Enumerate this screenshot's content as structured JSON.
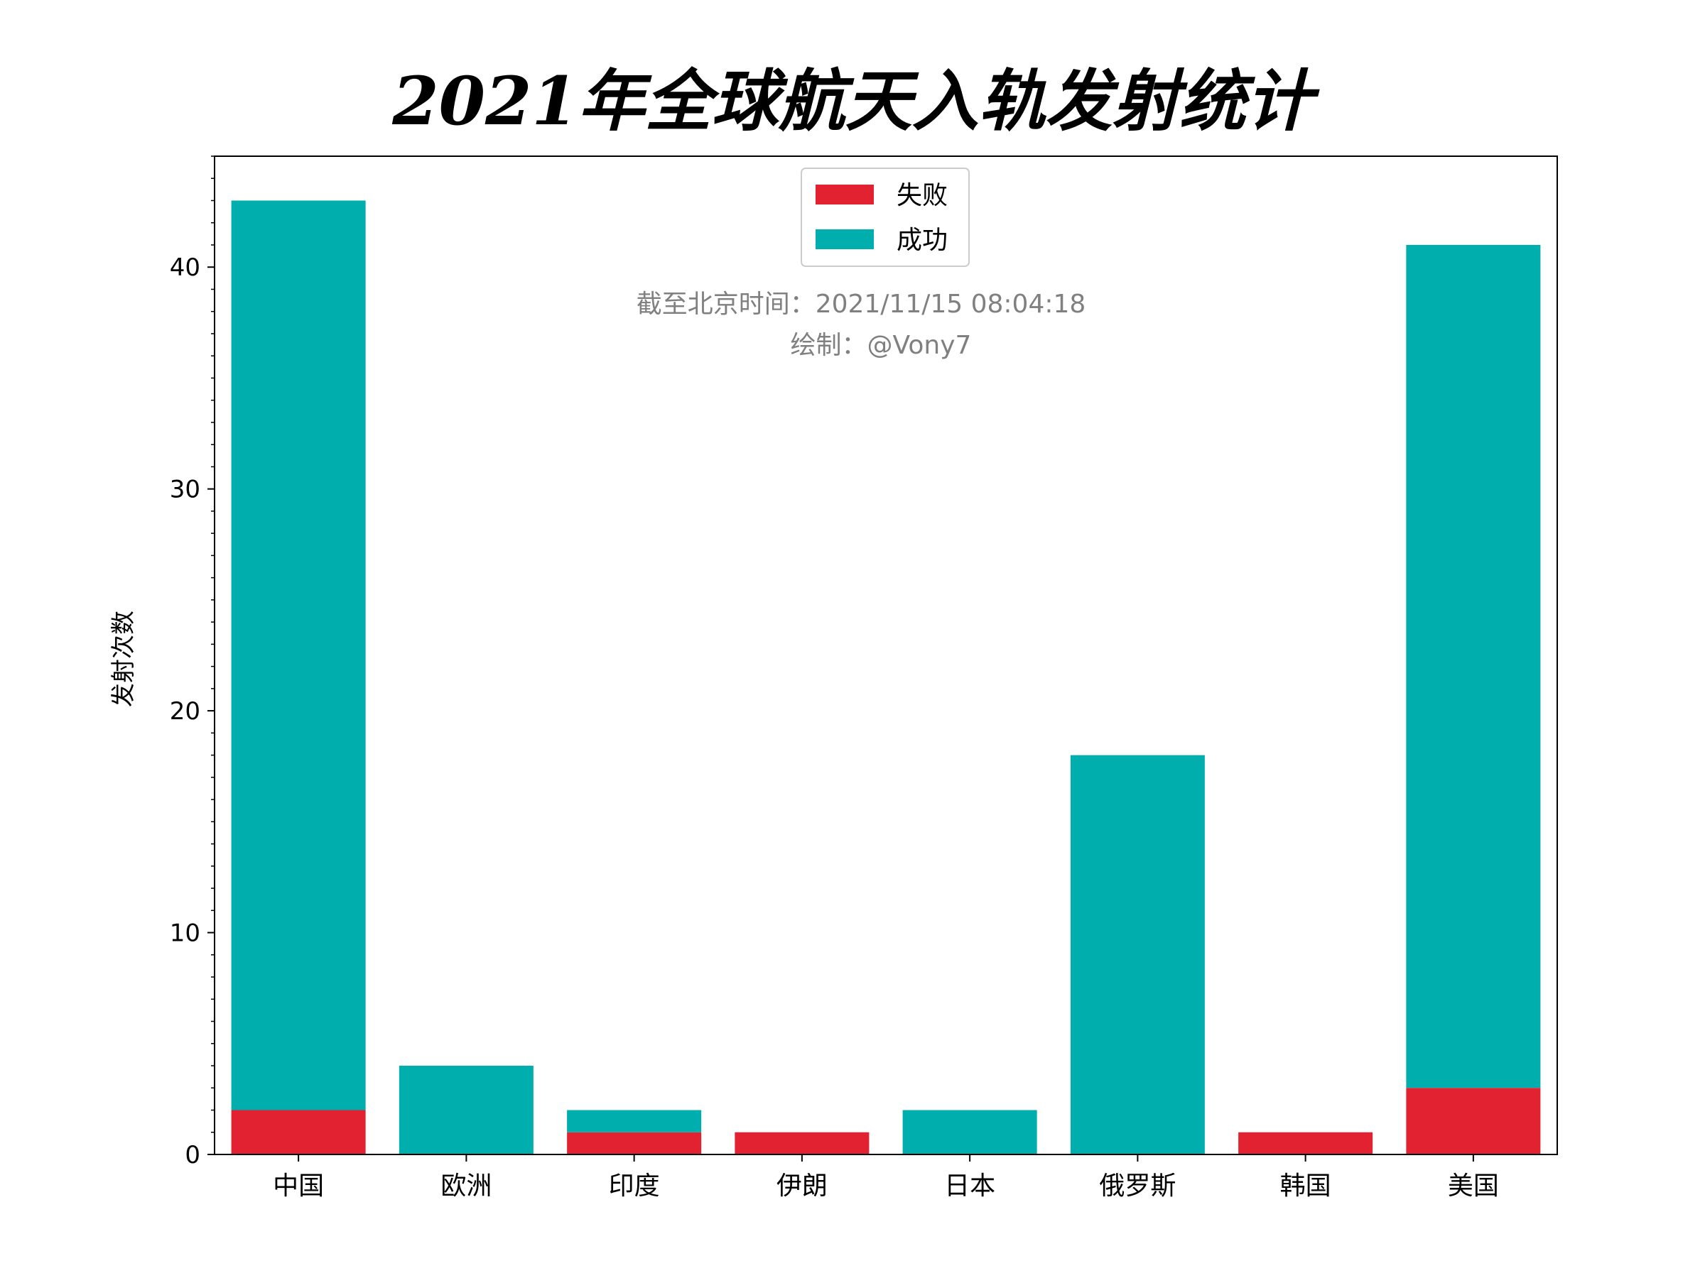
{
  "chart_data": {
    "type": "bar",
    "stacked": true,
    "title": "2021年全球航天入轨发射统计",
    "xlabel": "",
    "ylabel": "发射次数",
    "categories": [
      "中国",
      "欧洲",
      "印度",
      "伊朗",
      "日本",
      "俄罗斯",
      "韩国",
      "美国"
    ],
    "series": [
      {
        "name": "失败",
        "color": "#e32231",
        "values": [
          2,
          0,
          1,
          1,
          0,
          0,
          1,
          3
        ]
      },
      {
        "name": "成功",
        "color": "#00aead",
        "values": [
          41,
          4,
          1,
          0,
          2,
          18,
          0,
          38
        ]
      }
    ],
    "ylim": [
      0,
      45
    ],
    "yticks": [
      0,
      10,
      20,
      30,
      40
    ],
    "minor_ytick_step": 1,
    "grid": false,
    "legend_position": "top-center",
    "annotations": [
      "截至北京时间：2021/11/15 08:04:18",
      "绘制：@Vony7"
    ]
  }
}
